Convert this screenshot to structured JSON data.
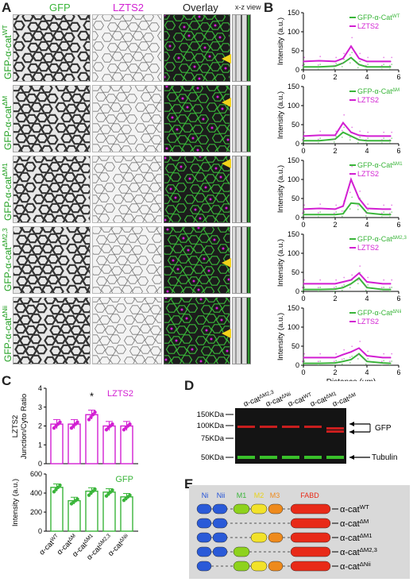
{
  "panels": {
    "A": "A",
    "B": "B",
    "C": "C",
    "D": "D",
    "E": "E"
  },
  "panelA": {
    "headers": {
      "gfp": "GFP",
      "lzts2": "LZTS2",
      "overlay": "Overlay",
      "xz": "x-z view"
    },
    "rows": [
      "GFP-α-cat^WT",
      "GFP-α-cat^ΔM",
      "GFP-α-cat^ΔM1",
      "GFP-α-cat^ΔM2,3",
      "GFP-α-cat^ΔNii"
    ]
  },
  "panelB": {
    "y_label": "Intensity (a.u.)",
    "x_label": "Distance (μm)",
    "x_ticks": [
      "0",
      "2",
      "4",
      "6"
    ],
    "plots": [
      {
        "green_label": "GFP-α-Cat^WT",
        "magenta_label": "LZTS2",
        "y_ticks": [
          "0",
          "50",
          "100",
          "150"
        ],
        "ymax": 150,
        "green": [
          [
            0,
            8
          ],
          [
            1,
            8
          ],
          [
            2,
            10
          ],
          [
            2.5,
            18
          ],
          [
            3,
            32
          ],
          [
            3.5,
            14
          ],
          [
            4,
            8
          ],
          [
            5,
            8
          ],
          [
            5.5,
            8
          ]
        ],
        "magenta": [
          [
            0,
            22
          ],
          [
            1,
            24
          ],
          [
            2,
            22
          ],
          [
            2.5,
            30
          ],
          [
            3,
            62
          ],
          [
            3.5,
            30
          ],
          [
            4,
            22
          ],
          [
            5,
            22
          ],
          [
            5.5,
            22
          ]
        ]
      },
      {
        "green_label": "GFP-α-Cat^ΔM",
        "magenta_label": "LZTS2",
        "y_ticks": [
          "0",
          "50",
          "100",
          "150"
        ],
        "ymax": 150,
        "green": [
          [
            0,
            8
          ],
          [
            1,
            8
          ],
          [
            2,
            12
          ],
          [
            2.5,
            30
          ],
          [
            3,
            20
          ],
          [
            3.5,
            10
          ],
          [
            4,
            8
          ],
          [
            5,
            8
          ],
          [
            5.5,
            8
          ]
        ],
        "magenta": [
          [
            0,
            20
          ],
          [
            1,
            22
          ],
          [
            2,
            22
          ],
          [
            2.5,
            55
          ],
          [
            3,
            30
          ],
          [
            3.5,
            22
          ],
          [
            4,
            20
          ],
          [
            5,
            20
          ],
          [
            5.5,
            20
          ]
        ]
      },
      {
        "green_label": "GFP-α-Cat^ΔM1",
        "magenta_label": "LZTS2",
        "y_ticks": [
          "0",
          "50",
          "100",
          "150"
        ],
        "ymax": 150,
        "green": [
          [
            0,
            8
          ],
          [
            1,
            8
          ],
          [
            2,
            8
          ],
          [
            2.5,
            10
          ],
          [
            3,
            38
          ],
          [
            3.5,
            36
          ],
          [
            4,
            12
          ],
          [
            5,
            8
          ],
          [
            5.5,
            8
          ]
        ],
        "magenta": [
          [
            0,
            22
          ],
          [
            1,
            24
          ],
          [
            2,
            22
          ],
          [
            2.5,
            30
          ],
          [
            3,
            100
          ],
          [
            3.5,
            50
          ],
          [
            4,
            24
          ],
          [
            5,
            22
          ],
          [
            5.5,
            22
          ]
        ]
      },
      {
        "green_label": "GFP-α-Cat^ΔM2,3",
        "magenta_label": "LZTS2",
        "y_ticks": [
          "0",
          "50",
          "100",
          "150"
        ],
        "ymax": 150,
        "green": [
          [
            0,
            5
          ],
          [
            1,
            5
          ],
          [
            2,
            6
          ],
          [
            2.5,
            10
          ],
          [
            3,
            20
          ],
          [
            3.5,
            35
          ],
          [
            4,
            10
          ],
          [
            5,
            5
          ],
          [
            5.5,
            5
          ]
        ],
        "magenta": [
          [
            0,
            20
          ],
          [
            1,
            20
          ],
          [
            2,
            20
          ],
          [
            2.5,
            25
          ],
          [
            3,
            30
          ],
          [
            3.5,
            48
          ],
          [
            4,
            25
          ],
          [
            5,
            20
          ],
          [
            5.5,
            20
          ]
        ]
      },
      {
        "green_label": "GFP-α-Cat^ΔNii",
        "magenta_label": "LZTS2",
        "y_ticks": [
          "0",
          "50",
          "100",
          "150"
        ],
        "ymax": 150,
        "green": [
          [
            0,
            5
          ],
          [
            1,
            5
          ],
          [
            2,
            6
          ],
          [
            2.5,
            10
          ],
          [
            3,
            15
          ],
          [
            3.5,
            30
          ],
          [
            4,
            10
          ],
          [
            5,
            6
          ],
          [
            5.5,
            5
          ]
        ],
        "magenta": [
          [
            0,
            20
          ],
          [
            1,
            20
          ],
          [
            2,
            20
          ],
          [
            2.5,
            28
          ],
          [
            3,
            35
          ],
          [
            3.5,
            45
          ],
          [
            4,
            25
          ],
          [
            5,
            20
          ],
          [
            5.5,
            20
          ]
        ]
      }
    ]
  },
  "panelC": {
    "top": {
      "label": "LZTS2",
      "ylabel": "LZTS2\nJunction/Cyto Ratio",
      "y_ticks": [
        "0",
        "1",
        "2",
        "3",
        "4"
      ],
      "values": [
        2.1,
        2.1,
        2.6,
        2.0,
        2.0
      ],
      "star": "*"
    },
    "bottom": {
      "label": "GFP",
      "ylabel": "Intensity (a.u.)",
      "y_ticks": [
        "0",
        "200",
        "400",
        "600"
      ],
      "values": [
        460,
        320,
        420,
        410,
        360
      ]
    },
    "categories": [
      "α-cat^WT",
      "α-cat^ΔM",
      "α-cat^ΔM1",
      "α-cat^ΔM2,3",
      "α-cat^ΔNii"
    ]
  },
  "panelD": {
    "lanes": [
      "α-cat^ΔM2,3",
      "α-cat^ΔNii",
      "α-cat^WT",
      "α-cat^ΔM1",
      "α-cat^ΔM"
    ],
    "markers": [
      "150KDa",
      "100KDa",
      "75KDa",
      "50KDa"
    ],
    "labels": {
      "gfp": "GFP",
      "tubulin": "Tubulin"
    }
  },
  "panelE": {
    "domains": {
      "ni": "Ni",
      "nii": "Nii",
      "m1": "M1",
      "m2": "M2",
      "m3": "M3",
      "fabd": "FABD"
    },
    "constructs": [
      "α-cat^WT",
      "α-cat^ΔM",
      "α-cat^ΔM1",
      "α-cat^ΔM2,3",
      "α-cat^ΔNii"
    ]
  },
  "colors": {
    "green": "#3ab53a",
    "magenta": "#d21fd2",
    "yellow": "#f2d21a",
    "blue": "#1f4fd8",
    "orange": "#ee8a1c",
    "red": "#e82a18",
    "lime": "#8ed21c"
  }
}
